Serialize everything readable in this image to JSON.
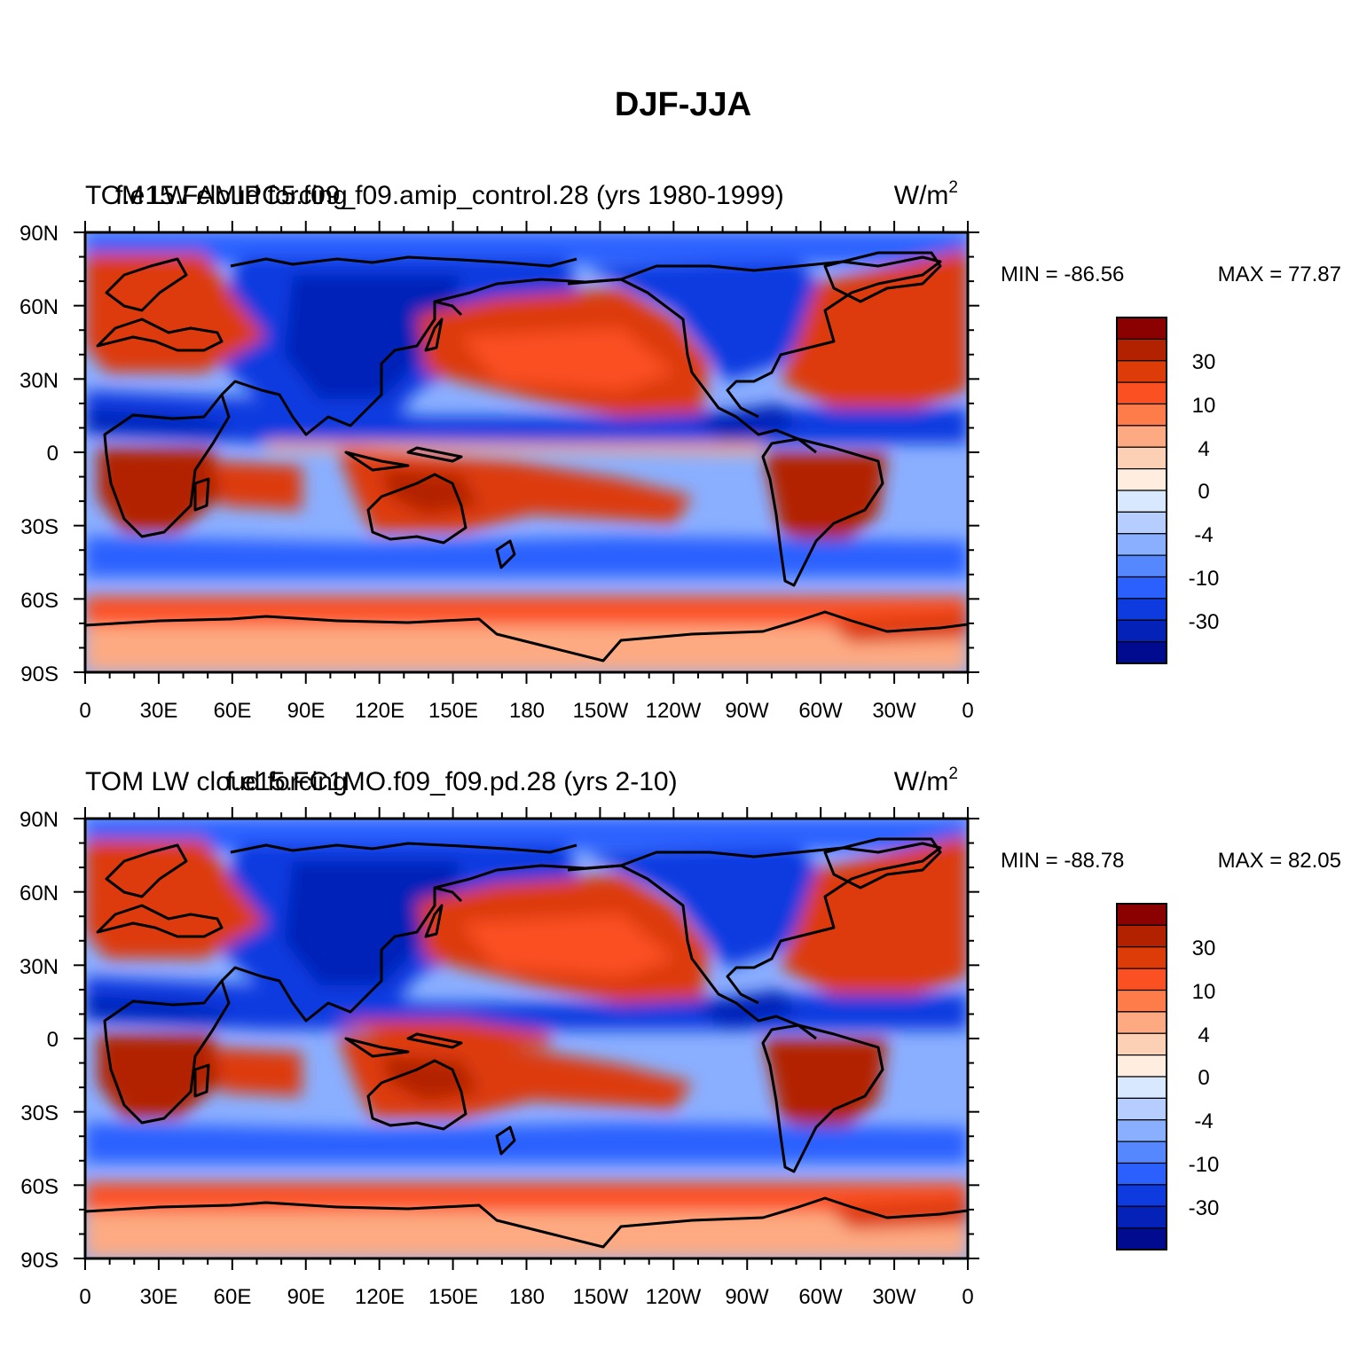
{
  "figure": {
    "title": "DJF-JJA"
  },
  "axes": {
    "lat_labels": [
      "90N",
      "60N",
      "30N",
      "0",
      "30S",
      "60S",
      "90S"
    ],
    "lon_labels": [
      "0",
      "30E",
      "60E",
      "90E",
      "120E",
      "150E",
      "180",
      "150W",
      "120W",
      "90W",
      "60W",
      "30W",
      "0"
    ]
  },
  "panels": [
    {
      "variable": "TOM LW cloud forcing",
      "case": "f.e15.FAMIPC5.f09_f09.amip_control.28 (yrs 1980-1999)",
      "units": "W/m",
      "units_sup": "2",
      "min_label": "MIN = -86.56",
      "max_label": "MAX =  77.87"
    },
    {
      "variable": "TOM LW cloud forcing",
      "case": "f.e15.FC1MO.f09_f09.pd.28 (yrs 2-10)",
      "units": "W/m",
      "units_sup": "2",
      "min_label": "MIN = -88.78",
      "max_label": "MAX =  82.05"
    }
  ],
  "colorbar": {
    "colors": [
      "#8b0000",
      "#b22200",
      "#dd3b07",
      "#fb5022",
      "#fe7b4a",
      "#fdaa82",
      "#fcd0b4",
      "#ffeddf",
      "#d8e8ff",
      "#b5cdff",
      "#8aafff",
      "#5588ff",
      "#2b60ff",
      "#0d3be0",
      "#0522b8",
      "#000b8f"
    ],
    "tick_labels": [
      "30",
      "10",
      "4",
      "0",
      "-4",
      "-10",
      "-30"
    ]
  },
  "colors": {
    "ocean_warm": "#dd3b07",
    "tropics_cold": "#0d3be0",
    "land_outline": "#000000"
  }
}
